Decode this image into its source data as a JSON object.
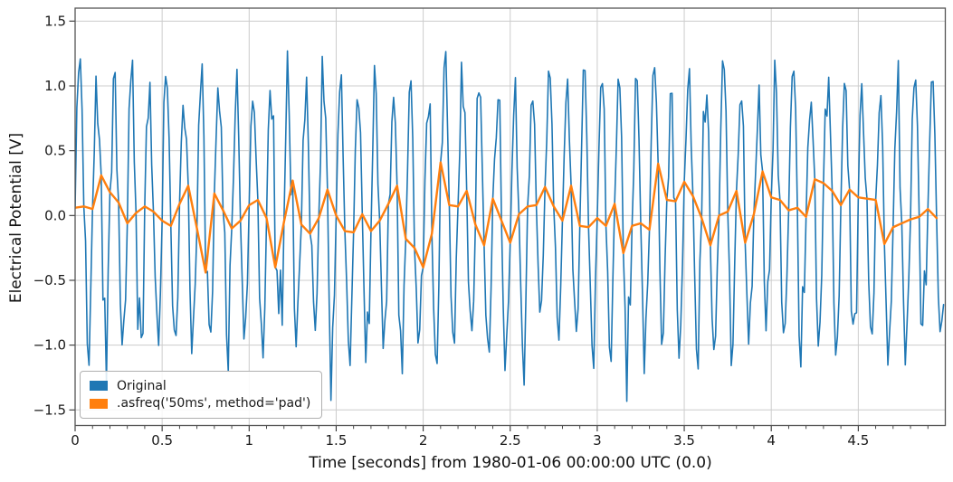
{
  "figure": {
    "background": "#ffffff",
    "grid_color": "#cccccc",
    "spine_color": "#555555",
    "tick_color": "#333333",
    "text_color": "#1a1a1a"
  },
  "legend": {
    "items": [
      {
        "label": "Original",
        "swatch_color": "#1f77b4"
      },
      {
        "label": ".asfreq('50ms', method='pad')",
        "swatch_color": "#ff7f0e"
      }
    ]
  },
  "chart_data": {
    "type": "line",
    "title": "",
    "xlabel": "Time [seconds] from 1980-01-06 00:00:00 UTC (0.0)",
    "ylabel": "Electrical Potential [V]",
    "xlim": [
      0,
      5.0
    ],
    "ylim": [
      -1.62,
      1.6
    ],
    "grid": true,
    "legend_position": "lower left",
    "xticks": {
      "values": [
        0,
        0.5,
        1,
        1.5,
        2,
        2.5,
        3,
        3.5,
        4,
        4.5
      ],
      "labels": [
        "0",
        "0.5",
        "1",
        "1.5",
        "2",
        "2.5",
        "3",
        "3.5",
        "4",
        "4.5"
      ],
      "minor_step": 0.1
    },
    "yticks": {
      "values": [
        1.5,
        1.0,
        0.5,
        0.0,
        -0.5,
        -1.0,
        -1.5
      ],
      "labels": [
        "1.5",
        "1.0",
        "0.5",
        "0.0",
        "−0.5",
        "−1.0",
        "−1.5"
      ]
    },
    "series": [
      {
        "name": "Original",
        "color": "#1f77b4",
        "line_width": 1.6,
        "generator": "sine_plus_noise",
        "description": "10 Hz, amplitude 1 V sine sampled every 0.01 s with Gaussian noise; at each 0.05 s timestamp the value equals the resampled series sample",
        "t_start": 0,
        "dt": 0.01,
        "n_points": 500,
        "sine_freq_hz": 10,
        "amplitude": 1.0,
        "noise_sigma": 0.17,
        "noise_seed": 7,
        "observed_min": -1.51,
        "observed_max": 1.46
      },
      {
        "name": ".asfreq('50ms', method='pad')",
        "color": "#ff7f0e",
        "line_width": 2.4,
        "t_start": 0,
        "dt": 0.05,
        "values": [
          0.06,
          0.07,
          0.05,
          0.31,
          0.18,
          0.1,
          -0.06,
          0.02,
          0.07,
          0.03,
          -0.04,
          -0.08,
          0.09,
          0.23,
          -0.1,
          -0.44,
          0.17,
          0.04,
          -0.1,
          -0.04,
          0.08,
          0.12,
          -0.02,
          -0.4,
          -0.05,
          0.27,
          -0.07,
          -0.14,
          -0.02,
          0.2,
          0.0,
          -0.12,
          -0.13,
          0.01,
          -0.12,
          -0.04,
          0.09,
          0.23,
          -0.18,
          -0.25,
          -0.4,
          -0.14,
          0.41,
          0.08,
          0.07,
          0.19,
          -0.07,
          -0.23,
          0.13,
          -0.04,
          -0.21,
          0.01,
          0.07,
          0.08,
          0.22,
          0.07,
          -0.04,
          0.23,
          -0.08,
          -0.09,
          -0.02,
          -0.08,
          0.09,
          -0.29,
          -0.08,
          -0.06,
          -0.11,
          0.4,
          0.12,
          0.11,
          0.26,
          0.15,
          -0.02,
          -0.23,
          0.0,
          0.03,
          0.19,
          -0.21,
          0.01,
          0.34,
          0.14,
          0.12,
          0.04,
          0.06,
          -0.01,
          0.28,
          0.25,
          0.19,
          0.08,
          0.2,
          0.14,
          0.13,
          0.12,
          -0.22,
          -0.09,
          -0.06,
          -0.03,
          -0.01,
          0.05,
          -0.02
        ]
      }
    ]
  }
}
